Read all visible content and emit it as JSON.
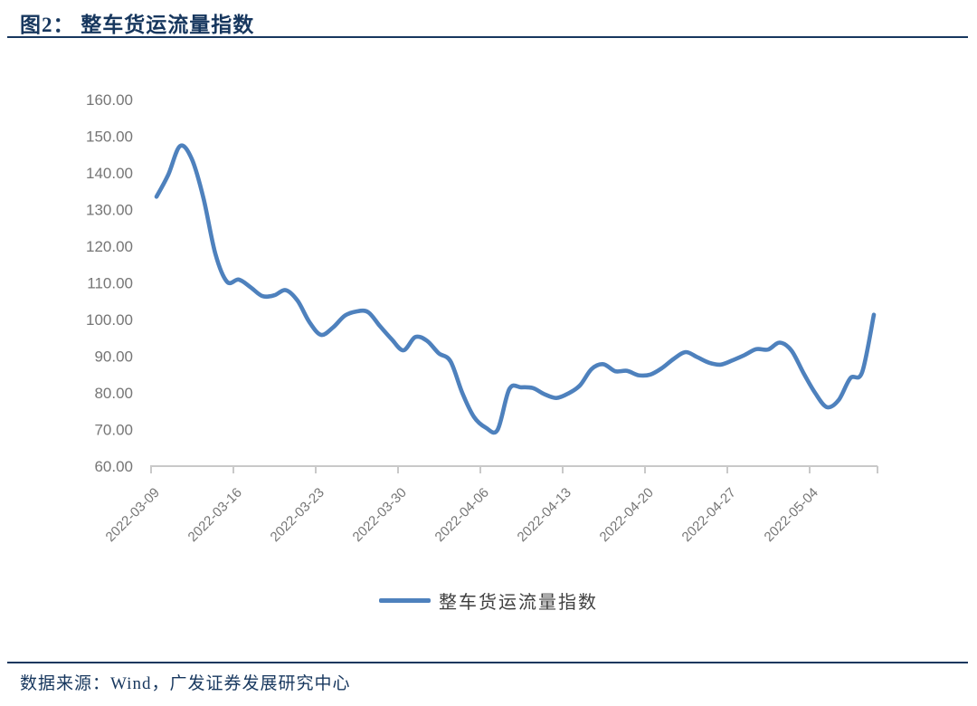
{
  "figure": {
    "title": "图2：  整车货运流量指数",
    "source": "数据来源：Wind，广发证券发展研究中心"
  },
  "colors": {
    "accent_navy": "#17375E",
    "series_blue": "#4E81BD",
    "axis_gray": "#C9C9C9",
    "label_gray": "#767676"
  },
  "legend": {
    "items": [
      {
        "label": "整车货运流量指数",
        "color": "#4E81BD"
      }
    ]
  },
  "chart_data": {
    "type": "line",
    "title": "整车货运流量指数",
    "xlabel": "",
    "ylabel": "",
    "ylim": [
      60,
      160
    ],
    "y_tick_step": 10,
    "y_tick_labels": [
      "160.00",
      "150.00",
      "140.00",
      "130.00",
      "120.00",
      "110.00",
      "100.00",
      "90.00",
      "80.00",
      "70.00",
      "60.00"
    ],
    "x_tick_every": 7,
    "x_tick_labels": [
      "2022-03-09",
      "2022-03-16",
      "2022-03-23",
      "2022-03-30",
      "2022-04-06",
      "2022-04-13",
      "2022-04-20",
      "2022-04-27",
      "2022-05-04"
    ],
    "grid": false,
    "legend_position": "bottom",
    "smooth": true,
    "series": [
      {
        "name": "整车货运流量指数",
        "color": "#4E81BD",
        "x": [
          "2022-03-09",
          "2022-03-10",
          "2022-03-11",
          "2022-03-12",
          "2022-03-13",
          "2022-03-14",
          "2022-03-15",
          "2022-03-16",
          "2022-03-17",
          "2022-03-18",
          "2022-03-19",
          "2022-03-20",
          "2022-03-21",
          "2022-03-22",
          "2022-03-23",
          "2022-03-24",
          "2022-03-25",
          "2022-03-26",
          "2022-03-27",
          "2022-03-28",
          "2022-03-29",
          "2022-03-30",
          "2022-03-31",
          "2022-04-01",
          "2022-04-02",
          "2022-04-03",
          "2022-04-04",
          "2022-04-05",
          "2022-04-06",
          "2022-04-07",
          "2022-04-08",
          "2022-04-09",
          "2022-04-10",
          "2022-04-11",
          "2022-04-12",
          "2022-04-13",
          "2022-04-14",
          "2022-04-15",
          "2022-04-16",
          "2022-04-17",
          "2022-04-18",
          "2022-04-19",
          "2022-04-20",
          "2022-04-21",
          "2022-04-22",
          "2022-04-23",
          "2022-04-24",
          "2022-04-25",
          "2022-04-26",
          "2022-04-27",
          "2022-04-28",
          "2022-04-29",
          "2022-04-30",
          "2022-05-01",
          "2022-05-02",
          "2022-05-03",
          "2022-05-04",
          "2022-05-05",
          "2022-05-06",
          "2022-05-07",
          "2022-05-08",
          "2022-05-09"
        ],
        "values": [
          133.5,
          139.5,
          147.3,
          143.8,
          133.0,
          118.0,
          110.3,
          110.9,
          108.8,
          106.4,
          106.6,
          108.0,
          105.1,
          99.3,
          95.8,
          97.8,
          101.0,
          102.2,
          102.0,
          98.2,
          94.6,
          91.6,
          95.2,
          94.2,
          90.8,
          88.6,
          80.0,
          73.4,
          70.5,
          69.9,
          81.0,
          81.5,
          81.3,
          79.6,
          78.6,
          79.8,
          82.0,
          86.5,
          87.8,
          85.9,
          86.0,
          84.8,
          85.0,
          86.8,
          89.3,
          91.1,
          89.7,
          88.2,
          87.7,
          88.9,
          90.3,
          91.9,
          91.8,
          93.7,
          91.5,
          85.5,
          80.0,
          76.1,
          78.0,
          84.0,
          85.6,
          101.3
        ]
      }
    ]
  }
}
